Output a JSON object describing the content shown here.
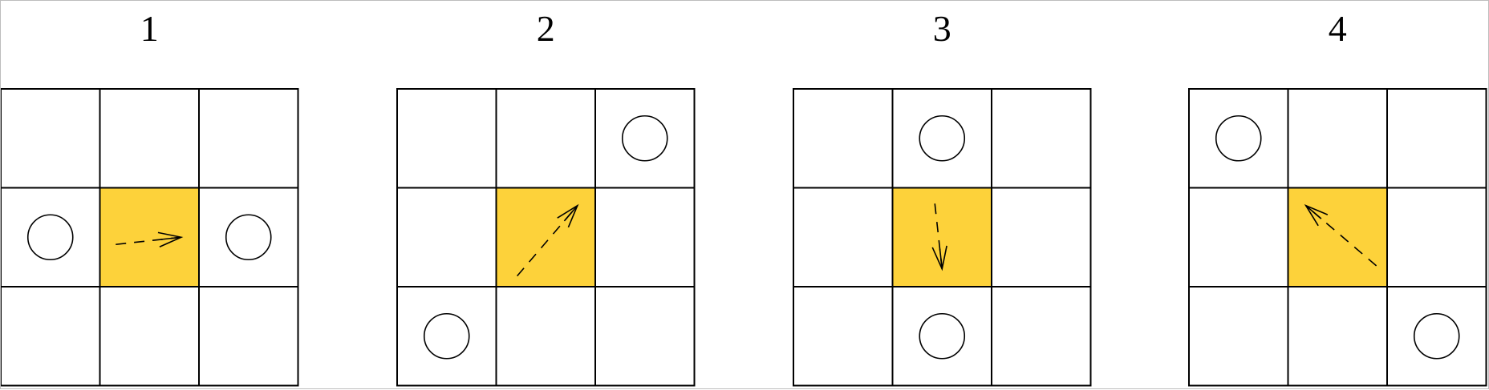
{
  "panels": [
    {
      "label": "1",
      "highlight": [
        1,
        1
      ],
      "circles": [
        [
          1,
          0
        ],
        [
          1,
          2
        ]
      ],
      "arrow": {
        "from": [
          1,
          0
        ],
        "to": [
          1,
          2
        ]
      }
    },
    {
      "label": "2",
      "highlight": [
        1,
        1
      ],
      "circles": [
        [
          0,
          2
        ],
        [
          2,
          0
        ]
      ],
      "arrow": {
        "from": [
          2,
          0
        ],
        "to": [
          0,
          2
        ]
      }
    },
    {
      "label": "3",
      "highlight": [
        1,
        1
      ],
      "circles": [
        [
          0,
          1
        ],
        [
          2,
          1
        ]
      ],
      "arrow": {
        "from": [
          0,
          1
        ],
        "to": [
          2,
          1
        ]
      }
    },
    {
      "label": "4",
      "highlight": [
        1,
        1
      ],
      "circles": [
        [
          0,
          0
        ],
        [
          2,
          2
        ]
      ],
      "arrow": {
        "from": [
          2,
          2
        ],
        "to": [
          0,
          0
        ]
      }
    }
  ],
  "colors": {
    "highlight_cell": "#fdd23a",
    "grid_line": "#000000",
    "background": "#ffffff"
  }
}
